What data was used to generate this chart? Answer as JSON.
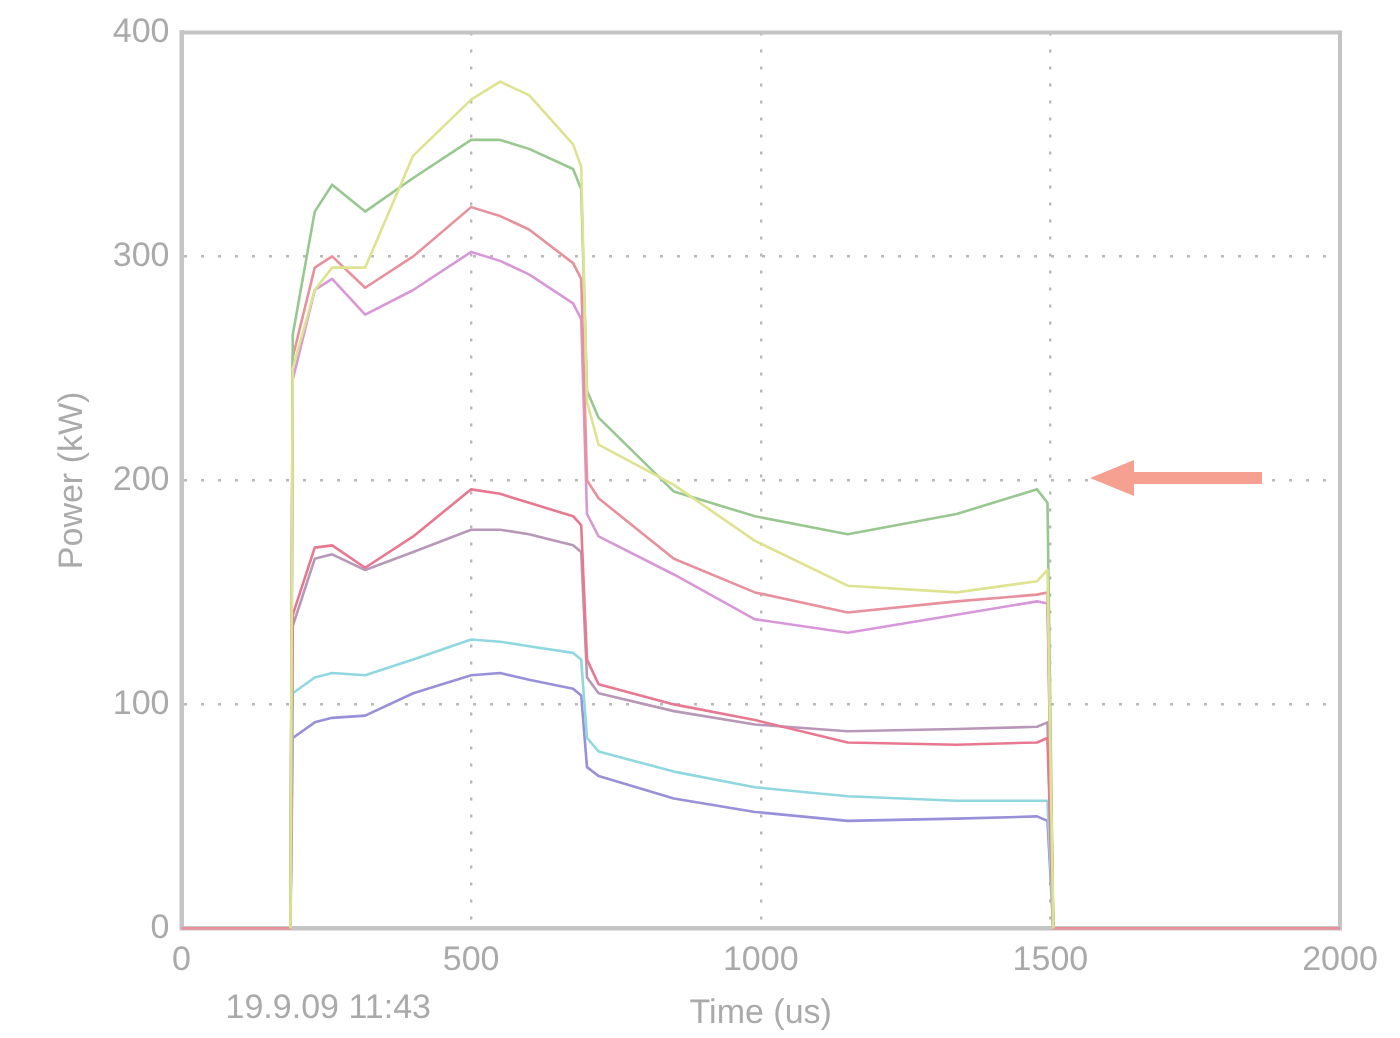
{
  "chart_data": {
    "type": "line",
    "xlabel": "Time (us)",
    "ylabel": "Power (kW)",
    "annotations": [
      "19.9.09 11:43"
    ],
    "x": [
      0,
      188,
      192,
      230,
      260,
      317,
      400,
      500,
      550,
      600,
      676,
      690,
      700,
      720,
      850,
      990,
      1150,
      1338,
      1477,
      1495,
      1505,
      2000
    ],
    "series": [
      {
        "color": "#dde38f",
        "values": [
          null,
          0,
          250,
          285,
          295,
          295,
          345,
          370,
          378,
          372,
          350,
          340,
          235,
          216,
          198,
          173,
          153,
          150,
          155,
          160,
          0,
          null
        ]
      },
      {
        "color": "#98c890",
        "values": [
          null,
          0,
          265,
          320,
          332,
          320,
          335,
          352,
          352,
          348,
          339,
          330,
          240,
          228,
          195,
          184,
          176,
          185,
          196,
          190,
          0,
          null
        ]
      },
      {
        "color": "#e8909c",
        "values": [
          0,
          0,
          255,
          295,
          300,
          286,
          300,
          322,
          318,
          312,
          297,
          290,
          200,
          192,
          165,
          150,
          141,
          146,
          149,
          150,
          0,
          0
        ]
      },
      {
        "color": "#d898d8",
        "values": [
          null,
          0,
          245,
          285,
          290,
          274,
          285,
          302,
          298,
          292,
          279,
          272,
          185,
          175,
          158,
          138,
          132,
          140,
          146,
          145,
          0,
          null
        ]
      },
      {
        "color": "#e87890",
        "values": [
          null,
          0,
          140,
          170,
          171,
          161,
          175,
          196,
          194,
          190,
          184,
          180,
          120,
          109,
          100,
          93,
          83,
          82,
          83,
          85,
          0,
          null
        ]
      },
      {
        "color": "#b898b8",
        "values": [
          null,
          0,
          135,
          165,
          167,
          160,
          168,
          178,
          178,
          176,
          171,
          168,
          112,
          105,
          97,
          91,
          88,
          89,
          90,
          92,
          0,
          null
        ]
      },
      {
        "color": "#90d8e0",
        "values": [
          null,
          0,
          105,
          112,
          114,
          113,
          120,
          129,
          128,
          126,
          123,
          120,
          85,
          79,
          70,
          63,
          59,
          57,
          57,
          57,
          0,
          null
        ]
      },
      {
        "color": "#9890d8",
        "values": [
          null,
          0,
          85,
          92,
          94,
          95,
          105,
          113,
          114,
          111,
          107,
          104,
          72,
          68,
          58,
          52,
          48,
          49,
          50,
          48,
          0,
          null
        ]
      }
    ],
    "xlim": [
      0,
      2000
    ],
    "xticks": [
      0,
      500,
      1000,
      1500,
      2000
    ],
    "ylim": [
      0,
      400
    ],
    "yticks": [
      0,
      100,
      200,
      300,
      400
    ],
    "grid": true,
    "legend": false,
    "marker": "none",
    "line_style": "solid"
  }
}
